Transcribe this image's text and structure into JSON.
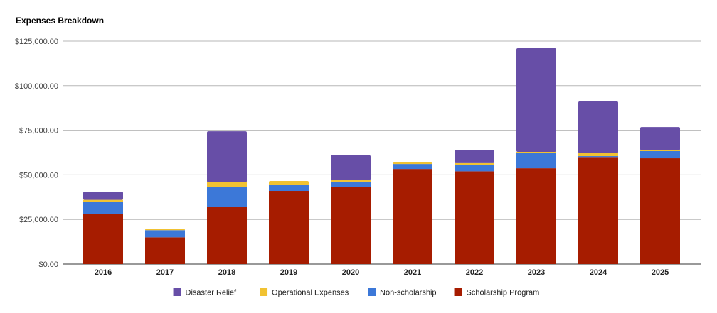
{
  "chart_data": {
    "type": "bar",
    "stacked": true,
    "title": "Expenses Breakdown",
    "xlabel": "",
    "ylabel": "",
    "ylim": [
      0,
      125000
    ],
    "yticks": [
      0,
      25000,
      50000,
      75000,
      100000,
      125000
    ],
    "ytick_labels": [
      "$0.00",
      "$25,000.00",
      "$50,000.00",
      "$75,000.00",
      "$100,000.00",
      "$125,000.00"
    ],
    "grid": true,
    "legend_position": "bottom",
    "categories": [
      "2016",
      "2017",
      "2018",
      "2019",
      "2020",
      "2021",
      "2022",
      "2023",
      "2024",
      "2025"
    ],
    "series": [
      {
        "name": "Scholarship Program",
        "color": "#a61c00",
        "values": [
          28000,
          15000,
          32000,
          41000,
          43000,
          53300,
          52000,
          53700,
          60000,
          59300
        ]
      },
      {
        "name": "Non-scholarship",
        "color": "#3c78d8",
        "values": [
          7000,
          4000,
          11000,
          3200,
          3200,
          2800,
          3600,
          8400,
          500,
          4000
        ]
      },
      {
        "name": "Operational Expenses",
        "color": "#f1c232",
        "values": [
          1000,
          800,
          2800,
          2400,
          800,
          1200,
          1400,
          800,
          1600,
          400
        ]
      },
      {
        "name": "Disaster Relief",
        "color": "#674ea7",
        "values": [
          4600,
          0,
          28600,
          0,
          14000,
          0,
          7000,
          58100,
          29100,
          13100
        ]
      }
    ],
    "legend_order": [
      3,
      2,
      1,
      0
    ]
  }
}
